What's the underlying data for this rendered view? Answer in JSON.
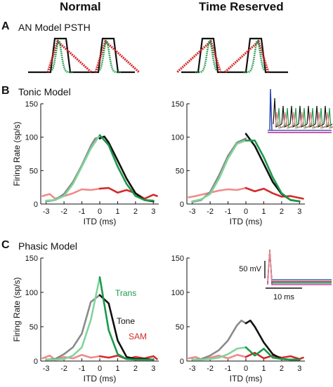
{
  "header": {
    "col_left": "Normal",
    "col_right": "Time Reserved"
  },
  "panels": {
    "A": {
      "letter": "A",
      "title": "AN Model PSTH"
    },
    "B": {
      "letter": "B",
      "title": "Tonic Model"
    },
    "C": {
      "letter": "C",
      "title": "Phasic Model"
    }
  },
  "colors": {
    "tone": "#111111",
    "trans": "#1a9a4a",
    "trans_light": "#7fd59a",
    "sam": "#d42a2a",
    "sam_light": "#f08a8a",
    "gray": "#8a8a8a",
    "blue": "#1e3aa8",
    "magenta": "#c0208a"
  },
  "axes": {
    "ylabel": "Firing Rate (sp/s)",
    "xlabel": "ITD (ms)",
    "yticks": [
      0,
      50,
      100,
      150
    ],
    "xticks": [
      -3,
      -2,
      -1,
      0,
      1,
      2,
      3
    ],
    "ylim": [
      0,
      150
    ],
    "xlim": [
      -3.3,
      3.3
    ]
  },
  "legend": {
    "trans": "Trans",
    "tone": "Tone",
    "sam": "SAM"
  },
  "scalebar": {
    "voltage": "50 mV",
    "time": "10 ms"
  },
  "chart_data": [
    {
      "id": "B-normal",
      "type": "line",
      "x": [
        -3,
        -2.5,
        -2,
        -1.5,
        -1,
        -0.5,
        0,
        0.5,
        1,
        1.5,
        2,
        2.5,
        3
      ],
      "series": [
        {
          "key": "gray",
          "x": [
            -3,
            -2.5,
            -2,
            -1.5,
            -1,
            -0.5,
            -0.25,
            0
          ],
          "values": [
            4,
            6,
            15,
            33,
            58,
            87,
            98,
            100
          ]
        },
        {
          "key": "trans_light",
          "x": [
            -3,
            -2.5,
            -2,
            -1.5,
            -1,
            -0.5,
            0
          ],
          "values": [
            5,
            6,
            12,
            30,
            56,
            83,
            103
          ]
        },
        {
          "key": "tone",
          "x": [
            0,
            0.25,
            0.5,
            1,
            1.5,
            2,
            2.5,
            3
          ],
          "values": [
            98,
            101,
            92,
            65,
            38,
            16,
            6,
            4
          ]
        },
        {
          "key": "trans",
          "x": [
            0,
            0.5,
            1,
            1.5,
            2,
            2.5,
            3
          ],
          "values": [
            103,
            88,
            56,
            30,
            12,
            6,
            5
          ]
        },
        {
          "key": "sam_light",
          "x": [
            -3.2,
            -2.8,
            -2.5,
            -2,
            -1.5,
            -1,
            -0.5,
            0
          ],
          "values": [
            12,
            15,
            8,
            12,
            16,
            22,
            21,
            23
          ]
        },
        {
          "key": "sam",
          "x": [
            0,
            0.5,
            1,
            1.5,
            2,
            2.5,
            3,
            3.2
          ],
          "values": [
            23,
            24,
            17,
            21,
            16,
            8,
            14,
            12
          ]
        }
      ]
    },
    {
      "id": "B-reserved",
      "type": "line",
      "series": [
        {
          "key": "gray",
          "x": [
            -3,
            -2.5,
            -2,
            -1.5,
            -1,
            -0.5,
            0
          ],
          "values": [
            3,
            6,
            18,
            43,
            72,
            92,
            98
          ]
        },
        {
          "key": "trans_light",
          "x": [
            -3,
            -2.5,
            -2,
            -1.5,
            -1,
            -0.5,
            0
          ],
          "values": [
            4,
            7,
            15,
            38,
            68,
            90,
            95
          ]
        },
        {
          "key": "tone",
          "x": [
            0,
            0.5,
            1,
            1.5,
            2,
            2.5,
            3
          ],
          "values": [
            105,
            87,
            60,
            33,
            15,
            6,
            4
          ]
        },
        {
          "key": "trans",
          "x": [
            0,
            0.5,
            1,
            1.5,
            2,
            2.5,
            3
          ],
          "values": [
            95,
            95,
            70,
            40,
            16,
            6,
            4
          ]
        },
        {
          "key": "sam_light",
          "x": [
            -3.2,
            -2.8,
            -2.5,
            -2,
            -1.5,
            -1,
            -0.5,
            0
          ],
          "values": [
            10,
            12,
            14,
            17,
            20,
            22,
            21,
            24
          ]
        },
        {
          "key": "sam",
          "x": [
            0,
            0.5,
            1,
            1.5,
            2,
            2.5,
            3,
            3.2
          ],
          "values": [
            24,
            19,
            23,
            16,
            11,
            12,
            9,
            8
          ]
        }
      ]
    },
    {
      "id": "C-normal",
      "type": "line",
      "series": [
        {
          "key": "gray",
          "x": [
            -3,
            -2.5,
            -2,
            -1.5,
            -1,
            -0.5,
            0
          ],
          "values": [
            2,
            3,
            10,
            20,
            40,
            86,
            96
          ]
        },
        {
          "key": "trans_light",
          "x": [
            -3,
            -2.5,
            -2,
            -1.5,
            -1,
            -0.5,
            0
          ],
          "values": [
            2,
            2,
            3,
            8,
            20,
            60,
            122
          ]
        },
        {
          "key": "tone",
          "x": [
            0,
            0.5,
            1,
            1.5,
            2,
            2.5,
            3
          ],
          "values": [
            96,
            84,
            30,
            6,
            3,
            3,
            2
          ]
        },
        {
          "key": "trans",
          "x": [
            0,
            0.5,
            1,
            1.5,
            2,
            2.5,
            3
          ],
          "values": [
            122,
            45,
            10,
            3,
            2,
            2,
            2
          ]
        },
        {
          "key": "sam_light",
          "x": [
            -3.2,
            -2.8,
            -2.5,
            -2,
            -1.5,
            -1,
            -0.5,
            0
          ],
          "values": [
            4,
            8,
            2,
            6,
            4,
            9,
            5,
            7
          ]
        },
        {
          "key": "sam",
          "x": [
            0,
            0.5,
            1,
            1.5,
            2,
            2.5,
            3,
            3.2
          ],
          "values": [
            7,
            5,
            8,
            3,
            6,
            4,
            7,
            3
          ]
        }
      ]
    },
    {
      "id": "C-reserved",
      "type": "line",
      "series": [
        {
          "key": "gray",
          "x": [
            -3,
            -2.5,
            -2,
            -1.5,
            -1,
            -0.5,
            -0.25,
            0
          ],
          "values": [
            2,
            3,
            8,
            16,
            30,
            52,
            59,
            55
          ]
        },
        {
          "key": "trans_light",
          "x": [
            -3,
            -2.5,
            -2,
            -1.5,
            -1,
            -0.5,
            0
          ],
          "values": [
            2,
            2,
            3,
            5,
            10,
            18,
            20
          ]
        },
        {
          "key": "tone",
          "x": [
            0,
            0.25,
            0.5,
            1,
            1.5,
            2,
            2.5,
            3
          ],
          "values": [
            55,
            59,
            50,
            27,
            10,
            3,
            2,
            2
          ]
        },
        {
          "key": "trans",
          "x": [
            0,
            0.5,
            1,
            1.5,
            2,
            2.5,
            3
          ],
          "values": [
            20,
            8,
            18,
            5,
            3,
            2,
            2
          ]
        },
        {
          "key": "sam_light",
          "x": [
            -3.2,
            -2.8,
            -2.5,
            -2,
            -1.5,
            -1,
            -0.5,
            0
          ],
          "values": [
            4,
            6,
            2,
            5,
            8,
            4,
            9,
            6
          ]
        },
        {
          "key": "sam",
          "x": [
            0,
            0.5,
            1,
            1.5,
            2,
            2.5,
            3,
            3.2
          ],
          "values": [
            6,
            12,
            4,
            8,
            5,
            7,
            3,
            5
          ]
        }
      ]
    }
  ]
}
